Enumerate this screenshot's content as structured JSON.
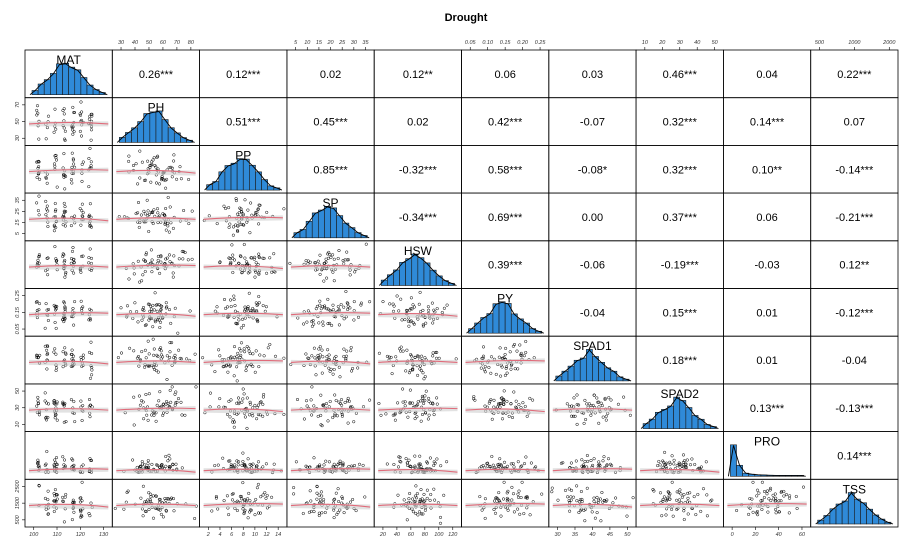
{
  "chart_data": {
    "type": "scatter-matrix",
    "title": "Drought",
    "variables": [
      "MAT",
      "PH",
      "PP",
      "SP",
      "HSW",
      "PY",
      "SPAD1",
      "SPAD2",
      "PRO",
      "TSS"
    ],
    "correlations": [
      [
        "",
        "0.26***",
        "0.12***",
        "0.02",
        "0.12**",
        "0.06",
        "0.03",
        "0.46***",
        "0.04",
        "0.22***"
      ],
      [
        "",
        "",
        "0.51***",
        "0.45***",
        "0.02",
        "0.42***",
        "-0.07",
        "0.32***",
        "0.14***",
        "0.07"
      ],
      [
        "",
        "",
        "",
        "0.85***",
        "-0.32***",
        "0.58***",
        "-0.08*",
        "0.32***",
        "0.10**",
        "-0.14***"
      ],
      [
        "",
        "",
        "",
        "",
        "-0.34***",
        "0.69***",
        "0.00",
        "0.37***",
        "0.06",
        "-0.21***"
      ],
      [
        "",
        "",
        "",
        "",
        "",
        "0.39***",
        "-0.06",
        "-0.19***",
        "-0.03",
        "0.12**"
      ],
      [
        "",
        "",
        "",
        "",
        "",
        "",
        "-0.04",
        "0.15***",
        "0.01",
        "-0.12***"
      ],
      [
        "",
        "",
        "",
        "",
        "",
        "",
        "",
        "0.18***",
        "0.01",
        "-0.04"
      ],
      [
        "",
        "",
        "",
        "",
        "",
        "",
        "",
        "",
        "0.13***",
        "-0.13***"
      ],
      [
        "",
        "",
        "",
        "",
        "",
        "",
        "",
        "",
        "",
        "0.14***"
      ],
      [
        "",
        "",
        "",
        "",
        "",
        "",
        "",
        "",
        "",
        ""
      ]
    ],
    "top_axes": [
      {
        "col": 1,
        "ticks": [
          "30",
          "40",
          "50",
          "60",
          "70",
          "80"
        ]
      },
      {
        "col": 3,
        "ticks": [
          "5",
          "10",
          "15",
          "20",
          "25",
          "30",
          "35"
        ]
      },
      {
        "col": 5,
        "ticks": [
          "0.05",
          "0.10",
          "0.15",
          "0.20",
          "0.25"
        ]
      },
      {
        "col": 7,
        "ticks": [
          "10",
          "20",
          "30",
          "40",
          "50"
        ]
      },
      {
        "col": 9,
        "ticks": [
          "500",
          "1000",
          "2000"
        ]
      }
    ],
    "bottom_axes": [
      {
        "col": 0,
        "ticks": [
          "100",
          "110",
          "120",
          "130"
        ]
      },
      {
        "col": 2,
        "ticks": [
          "2",
          "4",
          "6",
          "8",
          "10",
          "12",
          "14"
        ]
      },
      {
        "col": 4,
        "ticks": [
          "20",
          "40",
          "60",
          "80",
          "100",
          "120"
        ]
      },
      {
        "col": 6,
        "ticks": [
          "30",
          "35",
          "40",
          "45",
          "50"
        ]
      },
      {
        "col": 8,
        "ticks": [
          "0",
          "20",
          "40",
          "60"
        ]
      }
    ],
    "left_axes": [
      {
        "row": 1,
        "ticks": [
          "30",
          "50",
          "70"
        ]
      },
      {
        "row": 3,
        "ticks": [
          "5",
          "15",
          "25",
          "35"
        ]
      },
      {
        "row": 5,
        "ticks": [
          "0.05",
          "0.15",
          "0.25"
        ]
      },
      {
        "row": 7,
        "ticks": [
          "10",
          "30",
          "50"
        ]
      },
      {
        "row": 9,
        "ticks": [
          "500",
          "1500",
          "2500"
        ]
      }
    ],
    "colors": {
      "bar": "#2f8ad8",
      "density": "#000000",
      "points": "#000000",
      "smooth": "#e06b7a",
      "band": "#cfcfcf"
    }
  }
}
